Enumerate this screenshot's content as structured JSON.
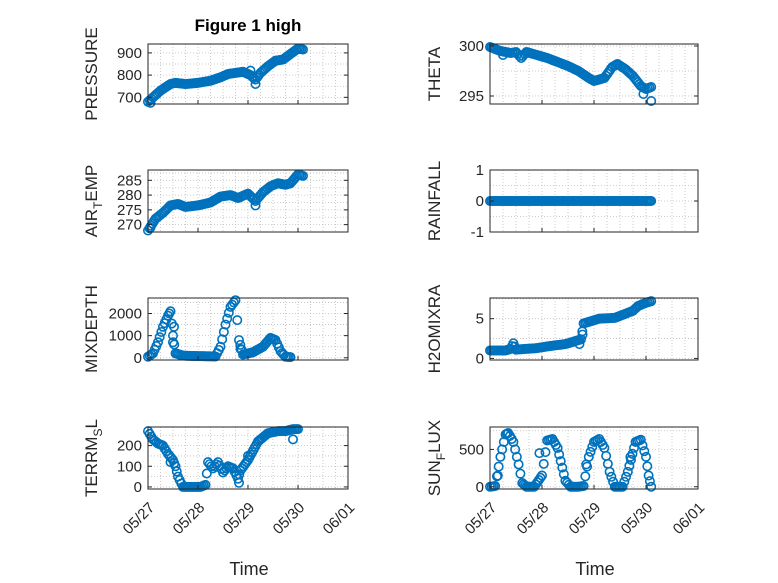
{
  "figure": {
    "marker_color": "#0072BD",
    "axis_color": "#262626",
    "grid_color": "#bfbfbf"
  },
  "chart_data": [
    {
      "type": "scatter",
      "title": "Figure 1 high",
      "ylabel": "PRESSURE",
      "ylim": [
        670,
        940
      ],
      "yticks": [
        700,
        800,
        900
      ],
      "xlim": [
        0,
        4
      ],
      "xticks": [],
      "xticklabels": [],
      "xlabel": "",
      "grid": true,
      "keypoints": [
        [
          0,
          680
        ],
        [
          0.1,
          700
        ],
        [
          0.25,
          730
        ],
        [
          0.45,
          760
        ],
        [
          0.55,
          765
        ],
        [
          0.75,
          760
        ],
        [
          1.0,
          765
        ],
        [
          1.25,
          775
        ],
        [
          1.45,
          790
        ],
        [
          1.6,
          805
        ],
        [
          1.75,
          810
        ],
        [
          1.9,
          815
        ],
        [
          2.05,
          800
        ],
        [
          2.15,
          780
        ],
        [
          2.25,
          810
        ],
        [
          2.4,
          840
        ],
        [
          2.55,
          865
        ],
        [
          2.7,
          870
        ],
        [
          2.85,
          895
        ],
        [
          3.0,
          920
        ],
        [
          3.1,
          915
        ]
      ],
      "extras": [
        [
          0.05,
          675
        ],
        [
          2.15,
          760
        ],
        [
          2.05,
          820
        ]
      ]
    },
    {
      "type": "scatter",
      "title": "",
      "ylabel": "THETA",
      "ylim": [
        294.2,
        300.2
      ],
      "yticks": [
        295,
        300
      ],
      "xlim": [
        0,
        4
      ],
      "xticks": [],
      "xticklabels": [],
      "xlabel": "",
      "grid": true,
      "keypoints": [
        [
          0,
          299.9
        ],
        [
          0.2,
          299.5
        ],
        [
          0.4,
          299.3
        ],
        [
          0.5,
          299.4
        ],
        [
          0.6,
          298.8
        ],
        [
          0.7,
          299.4
        ],
        [
          0.9,
          299.1
        ],
        [
          1.1,
          298.8
        ],
        [
          1.3,
          298.4
        ],
        [
          1.5,
          298.0
        ],
        [
          1.7,
          297.5
        ],
        [
          1.9,
          296.8
        ],
        [
          2.0,
          296.5
        ],
        [
          2.2,
          296.8
        ],
        [
          2.35,
          297.9
        ],
        [
          2.45,
          298.2
        ],
        [
          2.6,
          297.7
        ],
        [
          2.75,
          297.0
        ],
        [
          2.9,
          296.0
        ],
        [
          3.0,
          295.7
        ],
        [
          3.1,
          295.9
        ]
      ],
      "extras": [
        [
          3.1,
          294.5
        ],
        [
          2.95,
          295.2
        ],
        [
          0.25,
          299.1
        ]
      ]
    },
    {
      "type": "scatter",
      "title": "",
      "ylabel": "AIR_TEMP",
      "ylabel_sub_index": 3,
      "ylim": [
        267.5,
        288.5
      ],
      "yticks": [
        270,
        275,
        280,
        285
      ],
      "xlim": [
        0,
        4
      ],
      "xticks": [],
      "xticklabels": [],
      "xlabel": "",
      "grid": true,
      "keypoints": [
        [
          0,
          268
        ],
        [
          0.15,
          272
        ],
        [
          0.3,
          274
        ],
        [
          0.45,
          276.5
        ],
        [
          0.6,
          277
        ],
        [
          0.75,
          276
        ],
        [
          1.0,
          276.5
        ],
        [
          1.25,
          277.5
        ],
        [
          1.45,
          279.5
        ],
        [
          1.65,
          280
        ],
        [
          1.8,
          279
        ],
        [
          2.0,
          280.5
        ],
        [
          2.15,
          278
        ],
        [
          2.3,
          281
        ],
        [
          2.45,
          283
        ],
        [
          2.6,
          284
        ],
        [
          2.75,
          283.5
        ],
        [
          2.85,
          284
        ],
        [
          3.0,
          287
        ],
        [
          3.1,
          286.5
        ]
      ],
      "extras": [
        [
          2.15,
          276.5
        ],
        [
          0.05,
          269
        ]
      ]
    },
    {
      "type": "scatter",
      "title": "",
      "ylabel": "RAINFALL",
      "ylim": [
        -1,
        1
      ],
      "yticks": [
        -1,
        0,
        1
      ],
      "xlim": [
        0,
        4
      ],
      "xticks": [],
      "xticklabels": [],
      "xlabel": "",
      "grid": true,
      "keypoints": [
        [
          0,
          0
        ],
        [
          3.1,
          0
        ]
      ],
      "extras": []
    },
    {
      "type": "scatter",
      "title": "",
      "ylabel": "MIXDEPTH",
      "ylim": [
        -100,
        2700
      ],
      "yticks": [
        0,
        1000,
        2000
      ],
      "xlim": [
        0,
        4
      ],
      "xticks": [],
      "xticklabels": [],
      "xlabel": "",
      "grid": true,
      "keypoints": [
        [
          0,
          50
        ],
        [
          0.1,
          200
        ],
        [
          0.2,
          700
        ],
        [
          0.3,
          1400
        ],
        [
          0.4,
          1900
        ],
        [
          0.45,
          2100
        ],
        [
          0.5,
          1000
        ],
        [
          0.55,
          200
        ],
        [
          0.7,
          100
        ],
        [
          0.9,
          80
        ],
        [
          1.2,
          70
        ],
        [
          1.35,
          60
        ],
        [
          1.45,
          500
        ],
        [
          1.55,
          1500
        ],
        [
          1.65,
          2300
        ],
        [
          1.75,
          2600
        ],
        [
          1.82,
          800
        ],
        [
          1.9,
          150
        ],
        [
          2.1,
          250
        ],
        [
          2.3,
          500
        ],
        [
          2.45,
          900
        ],
        [
          2.55,
          800
        ],
        [
          2.65,
          300
        ],
        [
          2.75,
          50
        ],
        [
          2.85,
          30
        ]
      ],
      "extras": [
        [
          0.52,
          1400
        ],
        [
          0.5,
          700
        ],
        [
          1.85,
          400
        ]
      ]
    },
    {
      "type": "scatter",
      "title": "",
      "ylabel": "H2OMIXRA",
      "ylim": [
        -0.2,
        7.6
      ],
      "yticks": [
        0,
        5
      ],
      "xlim": [
        0,
        4
      ],
      "xticks": [],
      "xticklabels": [],
      "xlabel": "",
      "grid": true,
      "keypoints": [
        [
          0,
          1.0
        ],
        [
          0.3,
          1.0
        ],
        [
          0.4,
          1.2
        ],
        [
          0.45,
          1.9
        ],
        [
          0.5,
          1.1
        ],
        [
          0.9,
          1.3
        ],
        [
          1.2,
          1.6
        ],
        [
          1.45,
          1.8
        ],
        [
          1.65,
          2.2
        ],
        [
          1.75,
          2.4
        ],
        [
          1.8,
          4.4
        ],
        [
          1.9,
          4.6
        ],
        [
          2.1,
          5.0
        ],
        [
          2.4,
          5.1
        ],
        [
          2.6,
          5.6
        ],
        [
          2.75,
          6.0
        ],
        [
          2.85,
          6.6
        ],
        [
          3.0,
          7.0
        ],
        [
          3.1,
          7.2
        ]
      ],
      "extras": [
        [
          1.72,
          1.8
        ],
        [
          1.78,
          3.0
        ]
      ]
    },
    {
      "type": "scatter",
      "title": "",
      "ylabel": "TERR_MSL",
      "ylabel_sub_index": 5,
      "ylim": [
        -10,
        290
      ],
      "yticks": [
        0,
        100,
        200
      ],
      "xlim": [
        0,
        4
      ],
      "xticks": [
        0,
        1,
        2,
        3,
        4
      ],
      "xticklabels": [
        "05/27",
        "05/28",
        "05/29",
        "05/30",
        "06/01"
      ],
      "xlabel": "Time",
      "grid": true,
      "keypoints": [
        [
          0,
          270
        ],
        [
          0.1,
          230
        ],
        [
          0.2,
          210
        ],
        [
          0.3,
          200
        ],
        [
          0.4,
          160
        ],
        [
          0.5,
          130
        ],
        [
          0.55,
          100
        ],
        [
          0.6,
          50
        ],
        [
          0.7,
          0
        ],
        [
          0.9,
          0
        ],
        [
          1.05,
          0
        ],
        [
          1.15,
          10
        ],
        [
          1.2,
          120
        ],
        [
          1.3,
          90
        ],
        [
          1.4,
          120
        ],
        [
          1.5,
          70
        ],
        [
          1.6,
          100
        ],
        [
          1.7,
          90
        ],
        [
          1.8,
          40
        ],
        [
          1.85,
          80
        ],
        [
          2.0,
          130
        ],
        [
          2.2,
          220
        ],
        [
          2.4,
          260
        ],
        [
          2.6,
          270
        ],
        [
          2.75,
          270
        ],
        [
          2.9,
          280
        ],
        [
          3.0,
          280
        ]
      ],
      "extras": [
        [
          1.82,
          20
        ],
        [
          2.0,
          150
        ],
        [
          2.9,
          230
        ],
        [
          0.45,
          120
        ]
      ]
    },
    {
      "type": "scatter",
      "title": "",
      "ylabel": "SUN_FLUX",
      "ylabel_sub_index": 3,
      "ylim": [
        -30,
        800
      ],
      "yticks": [
        0,
        500
      ],
      "xlim": [
        0,
        4
      ],
      "xticks": [
        0,
        1,
        2,
        3,
        4
      ],
      "xticklabels": [
        "05/27",
        "05/28",
        "05/29",
        "05/30",
        "06/01"
      ],
      "xlabel": "Time",
      "grid": true,
      "keypoints": [
        [
          0,
          0
        ],
        [
          0.1,
          10
        ],
        [
          0.2,
          400
        ],
        [
          0.3,
          700
        ],
        [
          0.35,
          720
        ],
        [
          0.45,
          600
        ],
        [
          0.55,
          300
        ],
        [
          0.62,
          50
        ],
        [
          0.7,
          0
        ],
        [
          0.85,
          0
        ],
        [
          1.0,
          150
        ],
        [
          1.1,
          620
        ],
        [
          1.2,
          640
        ],
        [
          1.3,
          520
        ],
        [
          1.45,
          80
        ],
        [
          1.55,
          0
        ],
        [
          1.7,
          0
        ],
        [
          1.8,
          10
        ],
        [
          1.9,
          400
        ],
        [
          2.0,
          600
        ],
        [
          2.1,
          640
        ],
        [
          2.2,
          520
        ],
        [
          2.3,
          200
        ],
        [
          2.4,
          0
        ],
        [
          2.55,
          0
        ],
        [
          2.65,
          200
        ],
        [
          2.8,
          600
        ],
        [
          2.9,
          630
        ],
        [
          3.0,
          400
        ],
        [
          3.05,
          150
        ],
        [
          3.1,
          0
        ]
      ],
      "extras": [
        [
          0.15,
          150
        ],
        [
          0.95,
          450
        ],
        [
          1.85,
          300
        ],
        [
          2.7,
          400
        ]
      ]
    }
  ]
}
